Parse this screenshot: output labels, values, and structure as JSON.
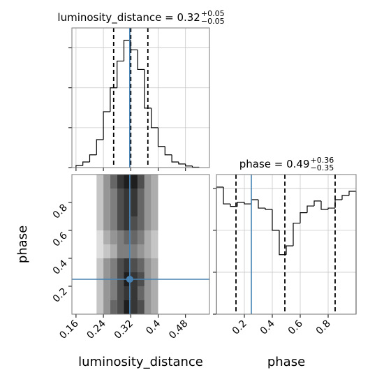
{
  "chart_data": [
    {
      "type": "histogram",
      "title": "luminosity_distance = 0.32",
      "title_sup": "+0.05",
      "title_sub": "−0.05",
      "bins": [
        0.16,
        0.18,
        0.2,
        0.22,
        0.24,
        0.26,
        0.28,
        0.3,
        0.32,
        0.34,
        0.36,
        0.38,
        0.4,
        0.42,
        0.44,
        0.46,
        0.48,
        0.5,
        0.52
      ],
      "values": [
        0.05,
        0.14,
        0.32,
        0.7,
        1.4,
        2.0,
        2.67,
        3.19,
        2.95,
        2.46,
        1.49,
        1.0,
        0.53,
        0.32,
        0.14,
        0.09,
        0.04,
        0.01
      ],
      "color": "#000000",
      "quantiles": [
        0.27,
        0.32,
        0.37
      ],
      "truth": 0.317,
      "truth_color": "#4682b4",
      "xlim": [
        0.148,
        0.55
      ],
      "xticks": [
        0.16,
        0.24,
        0.32,
        0.4,
        0.48
      ],
      "ylim": [
        0,
        3.5
      ],
      "yticks": [
        0,
        1,
        2,
        3
      ],
      "grid": true
    },
    {
      "type": "heatmap",
      "xlabel": "luminosity_distance",
      "ylabel": "phase",
      "xbins": [
        0.22,
        0.24,
        0.26,
        0.28,
        0.3,
        0.32,
        0.34,
        0.36,
        0.38,
        0.4
      ],
      "ybins": [
        0,
        0.1,
        0.2,
        0.3,
        0.4,
        0.5,
        0.6,
        0.7,
        0.8,
        0.9,
        1.0
      ],
      "z": [
        [
          2,
          4,
          6,
          7,
          9,
          8,
          7,
          4,
          3
        ],
        [
          2,
          4,
          5,
          7,
          8,
          8,
          6,
          4,
          3
        ],
        [
          2,
          4,
          5,
          7,
          9,
          8,
          7,
          4,
          3
        ],
        [
          2,
          4,
          5,
          7,
          8,
          7,
          6,
          4,
          3
        ],
        [
          1,
          2,
          3,
          5,
          5,
          5,
          4,
          3,
          2
        ],
        [
          1,
          3,
          4,
          5,
          6,
          6,
          5,
          3,
          2
        ],
        [
          2,
          4,
          5,
          7,
          8,
          7,
          6,
          4,
          3
        ],
        [
          2,
          4,
          5,
          7,
          8,
          8,
          6,
          4,
          3
        ],
        [
          2,
          4,
          5,
          7,
          8,
          8,
          6,
          4,
          3
        ],
        [
          2,
          4,
          6,
          8,
          9,
          9,
          7,
          4,
          3
        ]
      ],
      "truth_x": 0.317,
      "truth_y": 0.25,
      "truth_color": "#4682b4",
      "xlim": [
        0.148,
        0.55
      ],
      "xticks": [
        0.16,
        0.24,
        0.32,
        0.4,
        0.48
      ],
      "ylim": [
        0,
        1
      ],
      "yticks": [
        0.2,
        0.4,
        0.6,
        0.8
      ],
      "grid": false
    },
    {
      "type": "histogram",
      "title": "phase = 0.49",
      "title_sup": "+0.36",
      "title_sub": "−0.35",
      "xlabel": "phase",
      "bins": [
        0,
        0.05,
        0.1,
        0.15,
        0.2,
        0.25,
        0.3,
        0.35,
        0.4,
        0.45,
        0.5,
        0.55,
        0.6,
        0.65,
        0.7,
        0.75,
        0.8,
        0.85,
        0.9,
        0.95,
        1.0
      ],
      "values": [
        3.03,
        2.63,
        2.57,
        2.67,
        2.63,
        2.73,
        2.53,
        2.5,
        2.0,
        1.42,
        1.63,
        2.17,
        2.42,
        2.58,
        2.7,
        2.5,
        2.53,
        2.73,
        2.83,
        2.93
      ],
      "color": "#000000",
      "quantiles": [
        0.14,
        0.49,
        0.85
      ],
      "truth": 0.25,
      "truth_color": "#4682b4",
      "xlim": [
        0,
        1
      ],
      "xticks": [
        0.2,
        0.4,
        0.6,
        0.8
      ],
      "ylim": [
        0,
        3.33
      ],
      "yticks": [
        0,
        1,
        2,
        3
      ],
      "grid": true
    }
  ]
}
